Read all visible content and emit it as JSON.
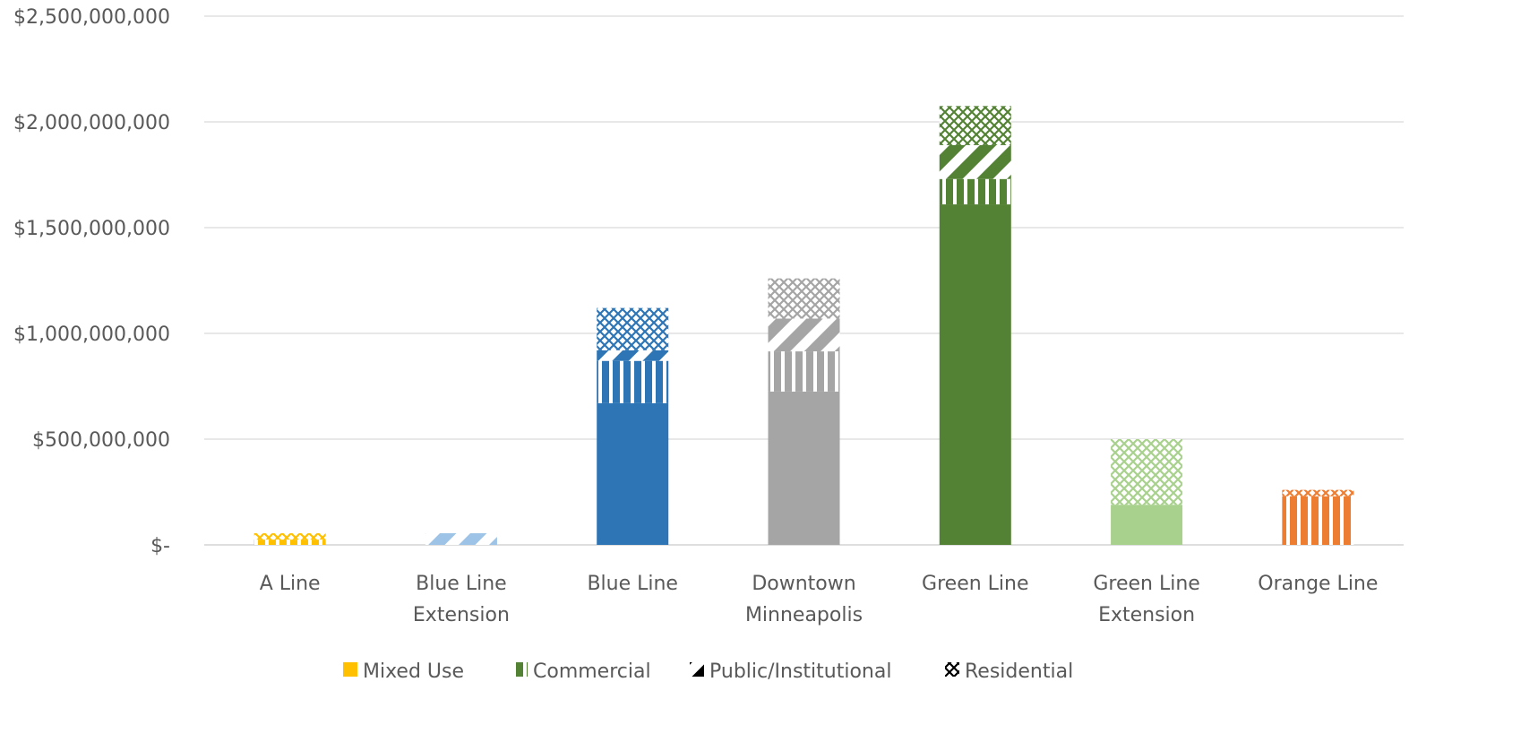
{
  "chart_data": {
    "type": "bar",
    "stacked": true,
    "title": "",
    "xlabel": "",
    "ylabel": "",
    "ylim": [
      0,
      2500000000
    ],
    "grid": true,
    "legend_position": "bottom",
    "y_ticks": [
      "$2,500,000,000",
      "$2,000,000,000",
      "$1,500,000,000",
      "$1,000,000,000",
      "$500,000,000",
      "$-"
    ],
    "y_tick_values": [
      2500000000,
      2000000000,
      1500000000,
      1000000000,
      500000000,
      0
    ],
    "categories": [
      [
        "A Line"
      ],
      [
        "Blue Line",
        "Extension"
      ],
      [
        "Blue Line"
      ],
      [
        "Downtown",
        "Minneapolis"
      ],
      [
        "Green Line"
      ],
      [
        "Green Line",
        "Extension"
      ],
      [
        "Orange Line"
      ]
    ],
    "bar_colors": [
      "#FFC000",
      "#9DC3E6",
      "#2E75B6",
      "#A5A5A5",
      "#548235",
      "#A9D18E",
      "#ED7D31"
    ],
    "series": [
      {
        "name": "Mixed Use",
        "pattern": "solid",
        "values": [
          0,
          0,
          670000000,
          725000000,
          1610000000,
          190000000,
          0
        ]
      },
      {
        "name": "Commercial",
        "pattern": "vertical",
        "values": [
          25000000,
          0,
          200000000,
          190000000,
          120000000,
          0,
          230000000
        ]
      },
      {
        "name": "Public/Institutional",
        "pattern": "diagonal",
        "values": [
          0,
          55000000,
          50000000,
          155000000,
          160000000,
          0,
          0
        ]
      },
      {
        "name": "Residential",
        "pattern": "crosshatch",
        "values": [
          30000000,
          0,
          200000000,
          190000000,
          185000000,
          310000000,
          30000000
        ]
      }
    ]
  }
}
